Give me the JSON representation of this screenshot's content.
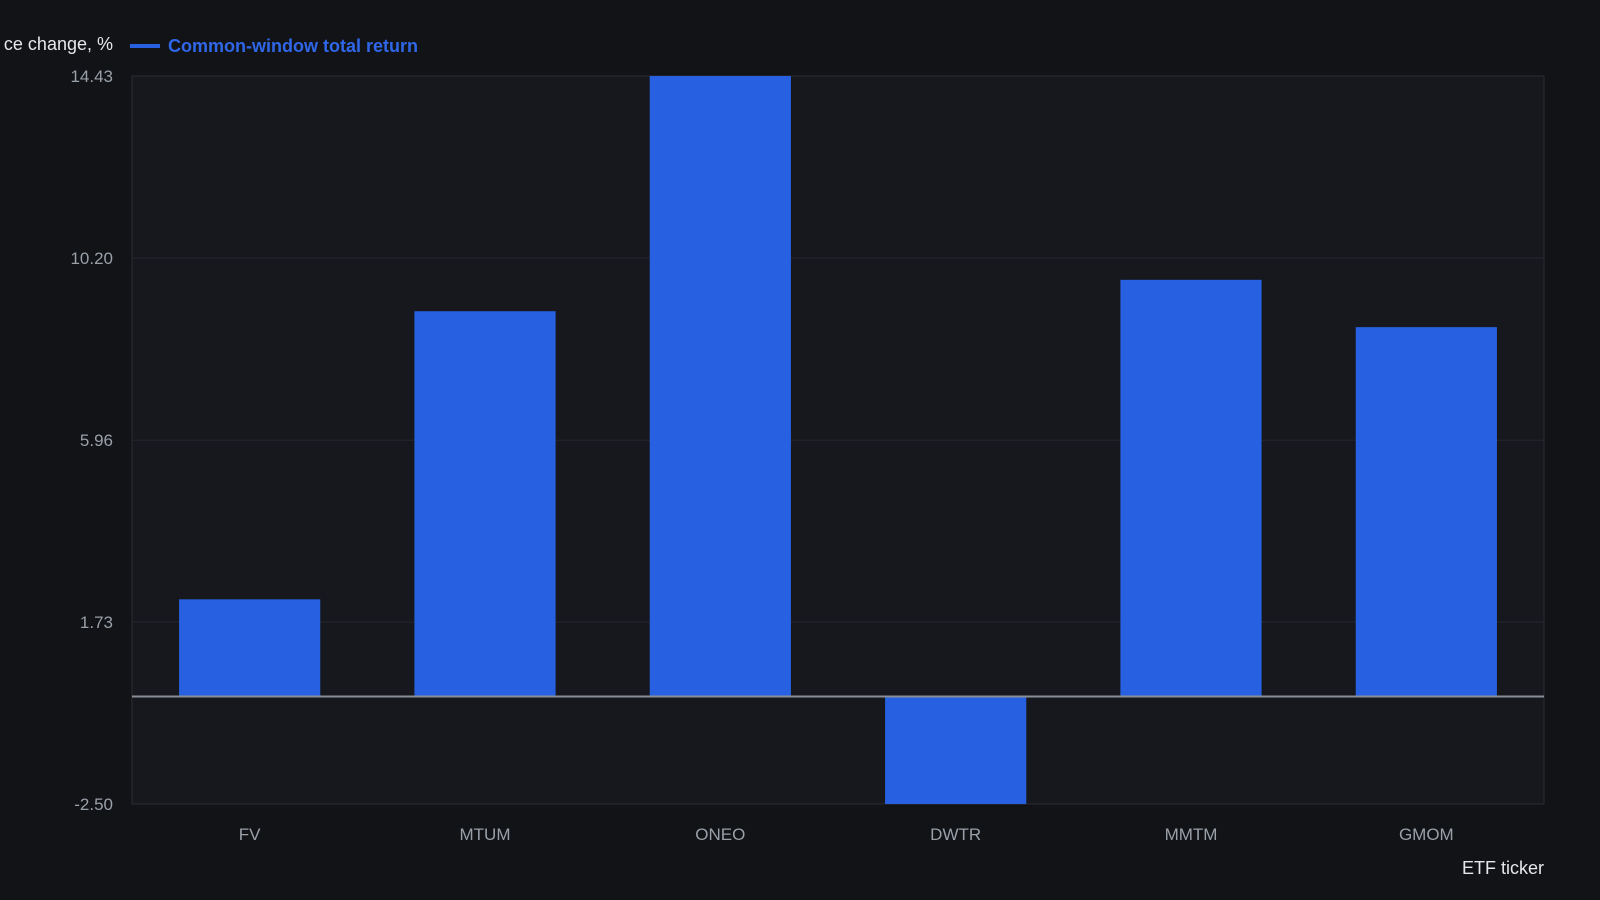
{
  "chart_data": {
    "type": "bar",
    "categories": [
      "FV",
      "MTUM",
      "ONEO",
      "DWTR",
      "MMTM",
      "GMOM"
    ],
    "series": [
      {
        "name": "Common-window total return",
        "values": [
          2.26,
          8.96,
          14.43,
          -2.5,
          9.69,
          8.59
        ]
      }
    ],
    "ylabel": "ce change, %",
    "xlabel": "ETF ticker",
    "yticks": [
      "14.43",
      "10.20",
      "5.96",
      "1.73",
      "-2.50"
    ],
    "ytick_values": [
      14.43,
      10.2,
      5.96,
      1.73,
      -2.5
    ],
    "ylim": [
      -2.5,
      14.43
    ],
    "grid": true,
    "legend_position": "top-left"
  },
  "colors": {
    "background": "#111317",
    "plot_background": "#16181d",
    "bar": "#2760e0",
    "grid": "#24272e",
    "zero_line": "#8a8f97",
    "legend_text": "#2f67e8"
  }
}
